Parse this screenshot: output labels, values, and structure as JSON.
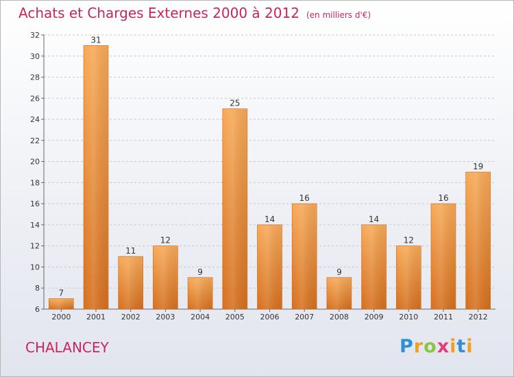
{
  "header": {
    "title": "Achats et Charges Externes 2000 à 2012",
    "unit": "(en milliers d'€)"
  },
  "footer": {
    "commune": "CHALANCEY",
    "logo": "Proxiti"
  },
  "colors": {
    "title": "#c8255a",
    "bar_light": "#f5a553",
    "bar_dark": "#d8711f",
    "grid": "#c8c8c8"
  },
  "chart_data": {
    "type": "bar",
    "title": "Achats et Charges Externes 2000 à 2012",
    "subtitle": "(en milliers d'€)",
    "xlabel": "",
    "ylabel": "",
    "categories": [
      "2000",
      "2001",
      "2002",
      "2003",
      "2004",
      "2005",
      "2006",
      "2007",
      "2008",
      "2009",
      "2010",
      "2011",
      "2012"
    ],
    "values": [
      7,
      31,
      11,
      12,
      9,
      25,
      14,
      16,
      9,
      14,
      12,
      16,
      19
    ],
    "ylim": [
      6,
      32
    ],
    "yticks": [
      6,
      8,
      10,
      12,
      14,
      16,
      18,
      20,
      22,
      24,
      26,
      28,
      30,
      32
    ],
    "grid": "horizontal dashed",
    "legend": "none",
    "data_labels": true
  }
}
